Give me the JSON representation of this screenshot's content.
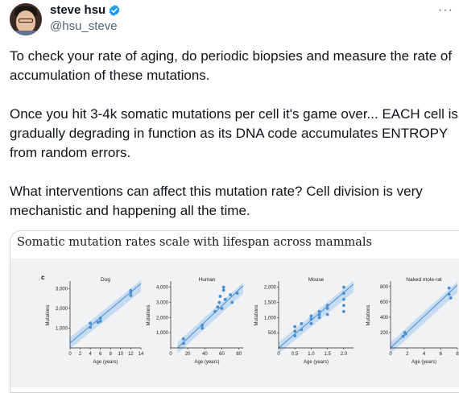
{
  "post": {
    "author_name": "steve hsu",
    "handle": "@hsu_steve",
    "more_icon": "more-horizontal-icon",
    "verified_icon": "verified-badge-icon",
    "verified_color": "#1d9bf0",
    "text": "To check your rate of aging, do periodic biopsies and measure the rate of accumulation of these mutations.\n\nOnce you hit 3-4k somatic mutations per cell it's game over... EACH cell is gradually degrading in function as its DNA code accumulates ENTROPY from random errors.\n\nWhat interventions can affect this mutation rate? Cell division is very mechanistic and happening all the time."
  },
  "media": {
    "title": "Somatic mutation rates scale with lifespan across mammals",
    "panel_label": "c",
    "point_color": "#4a8fd0",
    "band_color": "#bcd7f0"
  },
  "chart_data": [
    {
      "type": "scatter",
      "title": "Dog",
      "xlabel": "Age (years)",
      "ylabel": "Mutations",
      "xlim": [
        0,
        14
      ],
      "ylim": [
        0,
        3300
      ],
      "xticks": [
        0,
        2,
        4,
        6,
        8,
        10,
        12,
        14
      ],
      "yticks": [
        1000,
        2000,
        3000
      ],
      "ytick_labels": [
        "1,000",
        "2,000",
        "3,000"
      ],
      "points": [
        [
          4,
          1050
        ],
        [
          4,
          1250
        ],
        [
          5.5,
          1300
        ],
        [
          6,
          1500
        ],
        [
          6,
          1350
        ],
        [
          12,
          2650
        ],
        [
          12,
          2800
        ],
        [
          12,
          2900
        ]
      ],
      "fit": [
        [
          0,
          250
        ],
        [
          14,
          3250
        ]
      ]
    },
    {
      "type": "scatter",
      "title": "Human",
      "xlabel": "Age (years)",
      "ylabel": "Mutations",
      "xlim": [
        0,
        85
      ],
      "ylim": [
        0,
        4300
      ],
      "xticks": [
        0,
        20,
        40,
        60,
        80
      ],
      "yticks": [
        1000,
        2000,
        3000,
        4000
      ],
      "ytick_labels": [
        "1,000",
        "2,000",
        "3,000",
        "4,000"
      ],
      "points": [
        [
          15,
          300
        ],
        [
          15,
          600
        ],
        [
          37,
          1300
        ],
        [
          37,
          1500
        ],
        [
          52,
          2400
        ],
        [
          55,
          2700
        ],
        [
          57,
          3000
        ],
        [
          58,
          3400
        ],
        [
          60,
          2600
        ],
        [
          62,
          3800
        ],
        [
          64,
          3200
        ],
        [
          70,
          3500
        ],
        [
          72,
          3000
        ],
        [
          78,
          3600
        ],
        [
          62,
          4000
        ]
      ],
      "fit": [
        [
          8,
          0
        ],
        [
          85,
          4100
        ]
      ]
    },
    {
      "type": "scatter",
      "title": "Mouse",
      "xlabel": "Age (years)",
      "ylabel": "Mutations",
      "xlim": [
        0,
        2.3
      ],
      "ylim": [
        0,
        2150
      ],
      "xticks": [
        0,
        0.5,
        1.0,
        1.5,
        2.0
      ],
      "xtick_labels": [
        "0",
        "0.5",
        "1.0",
        "1.5",
        "2.0"
      ],
      "yticks": [
        500,
        1000,
        1500,
        2000
      ],
      "ytick_labels": [
        "500",
        "1,000",
        "1,500",
        "2,000"
      ],
      "points": [
        [
          0.5,
          400
        ],
        [
          0.5,
          550
        ],
        [
          0.5,
          700
        ],
        [
          0.7,
          600
        ],
        [
          0.7,
          800
        ],
        [
          1.0,
          800
        ],
        [
          1.0,
          950
        ],
        [
          1.0,
          1050
        ],
        [
          1.25,
          1000
        ],
        [
          1.25,
          1100
        ],
        [
          1.25,
          1200
        ],
        [
          1.5,
          1100
        ],
        [
          1.5,
          1300
        ],
        [
          1.5,
          1400
        ],
        [
          2.0,
          1200
        ],
        [
          2.0,
          1400
        ],
        [
          2.0,
          1600
        ],
        [
          2.0,
          1800
        ],
        [
          2.0,
          2000
        ]
      ],
      "fit": [
        [
          0,
          0
        ],
        [
          2.3,
          2100
        ]
      ]
    },
    {
      "type": "scatter",
      "title": "Naked mole-rat",
      "xlabel": "Age (years)",
      "ylabel": "Mutations",
      "xlim": [
        0,
        8
      ],
      "ylim": [
        0,
        850
      ],
      "xticks": [
        0,
        2,
        4,
        6,
        8
      ],
      "yticks": [
        200,
        400,
        600,
        800
      ],
      "ytick_labels": [
        "200",
        "400",
        "600",
        "800"
      ],
      "points": [
        [
          1.5,
          150
        ],
        [
          1.7,
          200
        ],
        [
          1.8,
          180
        ],
        [
          7,
          700
        ],
        [
          7,
          780
        ],
        [
          7.2,
          650
        ]
      ],
      "fit": [
        [
          0,
          0
        ],
        [
          8,
          820
        ]
      ]
    }
  ]
}
